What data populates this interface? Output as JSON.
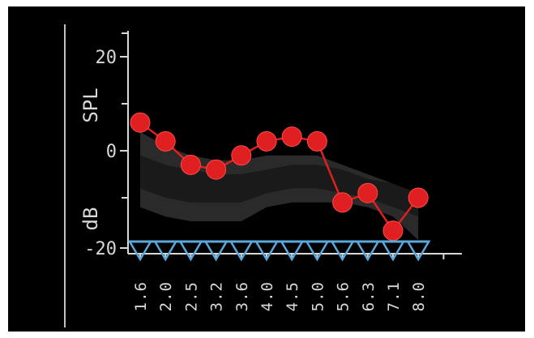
{
  "chart_data": {
    "type": "line",
    "title": "",
    "ylabel": "dB SPL",
    "ylabel_parts": [
      "dB",
      "SPL"
    ],
    "xlabel": "",
    "x_ticks": [
      "1.6",
      "2.0",
      "2.5",
      "3.2",
      "3.6",
      "4.0",
      "4.5",
      "5.0",
      "5.6",
      "6.3",
      "7.1",
      "8.0"
    ],
    "y_ticks": [
      -20,
      0,
      20
    ],
    "y_tick_labels": [
      "-20",
      "0",
      "20"
    ],
    "ylim": [
      -20,
      25
    ],
    "grid": false,
    "legend": "none",
    "series": [
      {
        "values": [
          6,
          2,
          -3,
          -4,
          -1,
          2,
          3,
          2,
          -11,
          -9,
          -17,
          -10
        ],
        "color": "#e02020",
        "marker": "circle"
      },
      {
        "values": [
          -20,
          -20,
          -20,
          -20,
          -20,
          -20,
          -20,
          -20,
          -20,
          -20,
          -20,
          -20
        ],
        "color": "#5aa8dc",
        "marker": "triangle-down"
      }
    ],
    "bands": [
      {
        "color": "#2a2a2a",
        "upper": [
          4,
          1,
          -1,
          -2,
          -2,
          -1,
          -1,
          -1,
          -3,
          -5,
          -7,
          -10
        ],
        "lower": [
          -12,
          -14,
          -15,
          -15,
          -15,
          -12,
          -11,
          -11,
          -11,
          -12,
          -14,
          -19
        ]
      },
      {
        "color": "#1a1a1a",
        "upper": [
          -1,
          -3,
          -4,
          -5,
          -5,
          -4,
          -3,
          -3,
          -4,
          -6,
          -7,
          -9
        ],
        "lower": [
          -8,
          -10,
          -11,
          -11,
          -11,
          -9,
          -8,
          -8,
          -9,
          -10,
          -12,
          -14
        ]
      }
    ],
    "colors": {
      "background": "#000000",
      "axis": "#d8d8d8",
      "text": "#d8d8d8"
    }
  }
}
